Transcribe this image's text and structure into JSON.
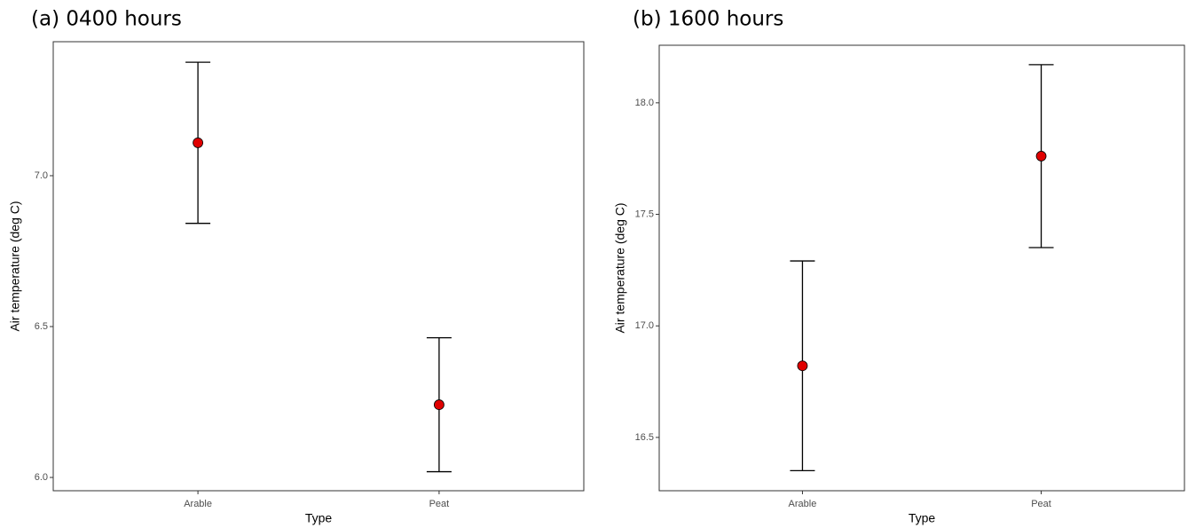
{
  "chart_data": [
    {
      "type": "errorbar",
      "title": "(a) 0400 hours",
      "x_label": "Type",
      "y_label": "Air temperature (deg C)",
      "categories": [
        "Arable",
        "Peat"
      ],
      "values": [
        7.109,
        6.241
      ],
      "errors": [
        0.267,
        0.222
      ],
      "color": "#e00000",
      "ylim": [
        5.956,
        7.444
      ],
      "yticks": [
        {
          "value": 6.0,
          "label": "6.0"
        },
        {
          "value": 6.5,
          "label": "6.5"
        },
        {
          "value": 7.0,
          "label": "7.0"
        }
      ]
    },
    {
      "type": "errorbar",
      "title": "(b) 1600 hours",
      "x_label": "Type",
      "y_label": "Air temperature (deg C)",
      "categories": [
        "Arable",
        "Peat"
      ],
      "values": [
        16.821,
        17.761
      ],
      "errors": [
        0.47,
        0.41
      ],
      "color": "#e00000",
      "ylim": [
        16.261,
        18.258
      ],
      "yticks": [
        {
          "value": 16.5,
          "label": "16.5"
        },
        {
          "value": 17.0,
          "label": "17.0"
        },
        {
          "value": 17.5,
          "label": "17.5"
        },
        {
          "value": 18.0,
          "label": "18.0"
        }
      ]
    }
  ]
}
